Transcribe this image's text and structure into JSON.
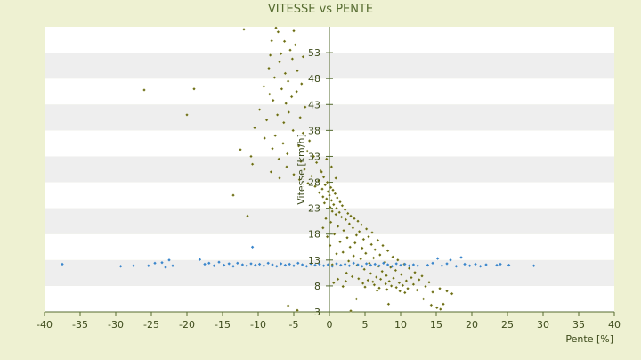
{
  "chart_data": {
    "type": "scatter",
    "title": "VITESSE vs PENTE",
    "xlabel": "Pente [%]",
    "ylabel": "Vitesse [km/h]",
    "xlim": [
      -40,
      40
    ],
    "ylim": [
      3,
      58
    ],
    "x_ticks": [
      -40,
      -35,
      -30,
      -25,
      -20,
      -15,
      -10,
      -5,
      0,
      5,
      10,
      15,
      20,
      25,
      30,
      35,
      40
    ],
    "y_ticks": [
      3,
      8,
      13,
      18,
      23,
      28,
      33,
      38,
      43,
      48,
      53
    ],
    "y_tick_labels": [
      "3",
      "8",
      "13",
      "18",
      "23",
      "28",
      "33",
      "38",
      "43",
      "48",
      "53"
    ],
    "grid": "horizontal bands",
    "legend": "none",
    "colors": {
      "background": "#eef1d2",
      "band_light": "#ffffff",
      "band_dark": "#eeeeee",
      "axis": "#556b2f",
      "title": "#556b2f",
      "tick_label": "#3c4a1a",
      "series_speed": "#6b6b14",
      "series_flat": "#3a86cc"
    },
    "series": [
      {
        "color": "#6b6b14",
        "marker": "diamond",
        "points": [
          [
            -12,
            57.5
          ],
          [
            -7.5,
            57.8
          ],
          [
            -7.2,
            57.0
          ],
          [
            -5.0,
            57.2
          ],
          [
            -6.3,
            55.2
          ],
          [
            -8.1,
            55.3
          ],
          [
            -4.8,
            54.5
          ],
          [
            -5.5,
            53.5
          ],
          [
            -8.3,
            52.5
          ],
          [
            -6.8,
            52.8
          ],
          [
            -5.2,
            51.8
          ],
          [
            -3.7,
            52.2
          ],
          [
            -7.0,
            51.2
          ],
          [
            -8.5,
            50.0
          ],
          [
            -4.5,
            49.5
          ],
          [
            -6.2,
            49.0
          ],
          [
            -7.7,
            48.2
          ],
          [
            -5.8,
            47.5
          ],
          [
            -3.9,
            47.0
          ],
          [
            -9.2,
            46.5
          ],
          [
            -6.7,
            46.0
          ],
          [
            -4.6,
            45.5
          ],
          [
            -8.4,
            45.0
          ],
          [
            -5.3,
            44.5
          ],
          [
            -26.0,
            45.8
          ],
          [
            -19.0,
            46.0
          ],
          [
            -20.0,
            41.0
          ],
          [
            -7.9,
            43.8
          ],
          [
            -6.1,
            43.2
          ],
          [
            -3.4,
            42.5
          ],
          [
            -9.8,
            42.0
          ],
          [
            -5.7,
            41.5
          ],
          [
            -7.3,
            41.0
          ],
          [
            -4.1,
            40.5
          ],
          [
            -8.8,
            40.0
          ],
          [
            -6.4,
            39.5
          ],
          [
            -10.5,
            38.5
          ],
          [
            -5.1,
            38.0
          ],
          [
            -3.7,
            37.5
          ],
          [
            -7.6,
            37.0
          ],
          [
            -9.1,
            36.5
          ],
          [
            -2.8,
            36.0
          ],
          [
            -6.5,
            35.5
          ],
          [
            -4.3,
            35.0
          ],
          [
            -8.0,
            34.5
          ],
          [
            -12.5,
            34.3
          ],
          [
            -3.1,
            34.0
          ],
          [
            -5.9,
            33.5
          ],
          [
            -2.2,
            33.0
          ],
          [
            -11.0,
            33.0
          ],
          [
            -7.1,
            32.5
          ],
          [
            -4.0,
            32.0
          ],
          [
            -1.8,
            31.8
          ],
          [
            -10.8,
            31.5
          ],
          [
            -6.0,
            31.0
          ],
          [
            -3.5,
            30.5
          ],
          [
            -1.2,
            30.2
          ],
          [
            -8.2,
            30.0
          ],
          [
            -5.0,
            29.5
          ],
          [
            -2.5,
            29.2
          ],
          [
            -0.8,
            29.0
          ],
          [
            -7.0,
            28.8
          ],
          [
            -4.2,
            28.5
          ],
          [
            -1.5,
            28.3
          ],
          [
            -0.3,
            28.0
          ],
          [
            -3.0,
            27.8
          ],
          [
            -0.6,
            27.5
          ],
          [
            -2.0,
            27.2
          ],
          [
            0.2,
            27.0
          ],
          [
            -1.0,
            26.7
          ],
          [
            0.5,
            26.5
          ],
          [
            -0.2,
            26.2
          ],
          [
            -1.4,
            26.0
          ],
          [
            0.8,
            25.8
          ],
          [
            -13.5,
            25.5
          ],
          [
            0.0,
            25.5
          ],
          [
            -0.9,
            25.2
          ],
          [
            1.1,
            25.0
          ],
          [
            -0.4,
            24.8
          ],
          [
            0.3,
            24.5
          ],
          [
            1.5,
            24.2
          ],
          [
            -0.7,
            24.0
          ],
          [
            0.6,
            23.7
          ],
          [
            1.8,
            23.5
          ],
          [
            0.1,
            23.2
          ],
          [
            1.0,
            23.0
          ],
          [
            2.2,
            22.7
          ],
          [
            0.4,
            22.4
          ],
          [
            1.4,
            22.2
          ],
          [
            2.6,
            22.0
          ],
          [
            -11.5,
            21.5
          ],
          [
            0.9,
            21.8
          ],
          [
            3.0,
            21.5
          ],
          [
            1.7,
            21.3
          ],
          [
            3.5,
            21.0
          ],
          [
            2.3,
            20.8
          ],
          [
            4.0,
            20.5
          ],
          [
            0.2,
            20.3
          ],
          [
            2.8,
            20.0
          ],
          [
            4.5,
            19.8
          ],
          [
            1.2,
            19.5
          ],
          [
            3.3,
            19.2
          ],
          [
            5.2,
            19.0
          ],
          [
            2.0,
            18.7
          ],
          [
            4.2,
            18.5
          ],
          [
            6.0,
            18.3
          ],
          [
            0.7,
            18.0
          ],
          [
            3.8,
            17.8
          ],
          [
            5.5,
            17.5
          ],
          [
            2.5,
            17.3
          ],
          [
            4.8,
            17.0
          ],
          [
            6.8,
            16.8
          ],
          [
            1.5,
            16.5
          ],
          [
            3.6,
            16.3
          ],
          [
            5.9,
            16.0
          ],
          [
            7.5,
            15.8
          ],
          [
            2.9,
            15.5
          ],
          [
            4.6,
            15.3
          ],
          [
            6.4,
            15.0
          ],
          [
            8.2,
            14.8
          ],
          [
            1.9,
            14.5
          ],
          [
            5.1,
            14.3
          ],
          [
            7.1,
            14.0
          ],
          [
            3.4,
            13.8
          ],
          [
            8.9,
            13.6
          ],
          [
            6.2,
            13.4
          ],
          [
            4.4,
            13.2
          ],
          [
            9.6,
            13.0
          ],
          [
            2.7,
            12.8
          ],
          [
            7.8,
            12.6
          ],
          [
            5.6,
            12.4
          ],
          [
            10.5,
            12.2
          ],
          [
            3.9,
            12.0
          ],
          [
            6.9,
            11.8
          ],
          [
            8.6,
            11.6
          ],
          [
            11.2,
            11.4
          ],
          [
            4.9,
            11.2
          ],
          [
            9.3,
            11.0
          ],
          [
            7.4,
            10.8
          ],
          [
            12.0,
            10.6
          ],
          [
            2.4,
            10.5
          ],
          [
            5.8,
            10.4
          ],
          [
            10.1,
            10.2
          ],
          [
            8.0,
            10.0
          ],
          [
            13.0,
            9.9
          ],
          [
            3.2,
            9.8
          ],
          [
            6.6,
            9.7
          ],
          [
            11.5,
            9.6
          ],
          [
            9.0,
            9.5
          ],
          [
            4.1,
            9.4
          ],
          [
            7.2,
            9.3
          ],
          [
            12.6,
            9.2
          ],
          [
            5.4,
            9.1
          ],
          [
            10.8,
            9.0
          ],
          [
            8.4,
            8.9
          ],
          [
            6.1,
            8.8
          ],
          [
            14.0,
            8.7
          ],
          [
            9.8,
            8.6
          ],
          [
            4.7,
            8.5
          ],
          [
            7.9,
            8.4
          ],
          [
            11.8,
            8.3
          ],
          [
            6.3,
            8.2
          ],
          [
            10.3,
            8.1
          ],
          [
            8.7,
            8.0
          ],
          [
            13.5,
            7.9
          ],
          [
            5.0,
            7.8
          ],
          [
            9.4,
            7.7
          ],
          [
            7.0,
            7.6
          ],
          [
            11.0,
            7.5
          ],
          [
            15.5,
            7.5
          ],
          [
            8.1,
            7.3
          ],
          [
            12.3,
            7.2
          ],
          [
            6.7,
            7.1
          ],
          [
            9.9,
            7.0
          ],
          [
            16.5,
            7.0
          ],
          [
            14.5,
            6.8
          ],
          [
            10.6,
            6.7
          ],
          [
            17.2,
            6.5
          ],
          [
            3.8,
            5.5
          ],
          [
            13.2,
            5.5
          ],
          [
            8.3,
            4.5
          ],
          [
            14.3,
            4.3
          ],
          [
            16.0,
            4.5
          ],
          [
            15.1,
            3.8
          ],
          [
            3.0,
            3.2
          ],
          [
            -5.8,
            4.2
          ],
          [
            -4.5,
            3.3
          ],
          [
            15.6,
            3.5
          ],
          [
            1.2,
            9.3
          ],
          [
            0.6,
            8.6
          ],
          [
            1.9,
            7.9
          ],
          [
            2.3,
            8.9
          ],
          [
            0.4,
            12.1
          ],
          [
            1.0,
            14.2
          ],
          [
            -0.5,
            21.0
          ],
          [
            -0.9,
            19.2
          ],
          [
            -0.3,
            17.5
          ],
          [
            0.1,
            15.8
          ],
          [
            -0.4,
            32.5
          ],
          [
            0.3,
            31.0
          ],
          [
            -1.1,
            30.0
          ],
          [
            0.9,
            28.8
          ]
        ]
      },
      {
        "color": "#3a86cc",
        "marker": "diamond",
        "points": [
          [
            -37.5,
            12.2
          ],
          [
            -29.3,
            11.8
          ],
          [
            -27.5,
            11.9
          ],
          [
            -25.4,
            11.9
          ],
          [
            -24.5,
            12.4
          ],
          [
            -23.5,
            12.5
          ],
          [
            -23.0,
            11.6
          ],
          [
            -22.5,
            13.0
          ],
          [
            -22.0,
            11.9
          ],
          [
            -18.2,
            13.1
          ],
          [
            -17.5,
            12.2
          ],
          [
            -16.9,
            12.4
          ],
          [
            -16.2,
            11.9
          ],
          [
            -15.5,
            12.6
          ],
          [
            -14.8,
            12.0
          ],
          [
            -14.1,
            12.3
          ],
          [
            -13.5,
            11.8
          ],
          [
            -12.9,
            12.4
          ],
          [
            -12.2,
            12.1
          ],
          [
            -11.6,
            11.9
          ],
          [
            -11.0,
            12.3
          ],
          [
            -10.8,
            15.5
          ],
          [
            -10.4,
            12.0
          ],
          [
            -9.8,
            12.2
          ],
          [
            -9.2,
            11.9
          ],
          [
            -8.6,
            12.4
          ],
          [
            -8.0,
            12.1
          ],
          [
            -7.4,
            11.8
          ],
          [
            -6.8,
            12.3
          ],
          [
            -6.2,
            12.0
          ],
          [
            -5.6,
            12.2
          ],
          [
            -5.0,
            11.9
          ],
          [
            -4.4,
            12.4
          ],
          [
            -3.8,
            12.1
          ],
          [
            -3.2,
            11.8
          ],
          [
            -2.6,
            12.3
          ],
          [
            -2.0,
            12.0
          ],
          [
            -1.4,
            12.2
          ],
          [
            -0.8,
            11.9
          ],
          [
            -0.2,
            12.1
          ],
          [
            0.4,
            11.8
          ],
          [
            1.0,
            12.3
          ],
          [
            1.6,
            12.0
          ],
          [
            2.2,
            12.2
          ],
          [
            2.8,
            11.9
          ],
          [
            3.4,
            12.4
          ],
          [
            4.0,
            12.1
          ],
          [
            4.6,
            11.8
          ],
          [
            5.2,
            12.3
          ],
          [
            5.8,
            12.0
          ],
          [
            6.4,
            12.2
          ],
          [
            7.0,
            11.9
          ],
          [
            7.6,
            12.4
          ],
          [
            8.2,
            12.1
          ],
          [
            8.8,
            11.8
          ],
          [
            9.4,
            12.3
          ],
          [
            10.0,
            12.0
          ],
          [
            10.6,
            12.2
          ],
          [
            11.2,
            11.9
          ],
          [
            11.8,
            12.1
          ],
          [
            12.4,
            11.9
          ],
          [
            13.8,
            12.0
          ],
          [
            14.5,
            12.4
          ],
          [
            15.2,
            13.3
          ],
          [
            15.8,
            11.9
          ],
          [
            16.5,
            12.3
          ],
          [
            17.0,
            13.0
          ],
          [
            17.8,
            11.8
          ],
          [
            18.5,
            13.5
          ],
          [
            19.0,
            12.2
          ],
          [
            19.7,
            11.9
          ],
          [
            20.5,
            12.2
          ],
          [
            21.2,
            11.8
          ],
          [
            22.0,
            12.1
          ],
          [
            23.5,
            12.0
          ],
          [
            24.0,
            12.2
          ],
          [
            25.2,
            12.0
          ],
          [
            28.7,
            11.9
          ]
        ]
      }
    ]
  }
}
